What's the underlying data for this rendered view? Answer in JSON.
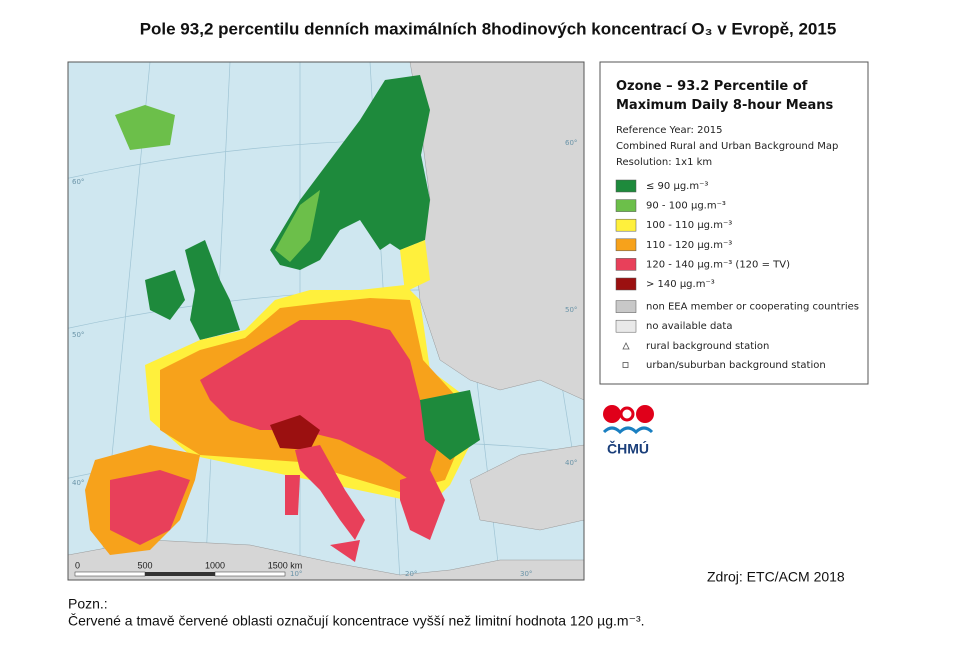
{
  "title": "Pole 93,2 percentilu denních maximálních 8hodinových koncentrací O₃ v Evropě, 2015",
  "map": {
    "graticule_labels": [
      "60°",
      "50°",
      "40°",
      "60°",
      "50°",
      "40°",
      "10°",
      "20°",
      "30°"
    ],
    "scale_labels": [
      "0",
      "500",
      "1000",
      "1500 km"
    ]
  },
  "legend": {
    "title": "Ozone – 93.2 Percentile of Maximum Daily 8-hour Means",
    "lines": [
      "Reference Year: 2015",
      "Combined Rural and Urban Background Map",
      "Resolution: 1x1 km"
    ],
    "items": [
      {
        "label": "≤ 90 µg.m⁻³",
        "color": "#1e8a3c"
      },
      {
        "label": "90 - 100 µg.m⁻³",
        "color": "#6cbf4a"
      },
      {
        "label": "100 - 110 µg.m⁻³",
        "color": "#fff03c"
      },
      {
        "label": "110 - 120 µg.m⁻³",
        "color": "#f7a21b"
      },
      {
        "label": "120 - 140 µg.m⁻³  (120 = TV)",
        "color": "#e8405a"
      },
      {
        "label": "> 140 µg.m⁻³",
        "color": "#9b1010"
      },
      {
        "label": "non EEA member or cooperating countries",
        "color": "#c8c8c8"
      },
      {
        "label": "no available data",
        "color": "#e9e9e9"
      }
    ],
    "stations": [
      "rural background station",
      "urban/suburban background station"
    ]
  },
  "logo": "ČHMÚ",
  "source": "Zdroj: ETC/ACM 2018",
  "note_heading": "Pozn.:",
  "note": "Červené a tmavě červené oblasti označují koncentrace vyšší než limitní hodnota 120 µg.m⁻³."
}
